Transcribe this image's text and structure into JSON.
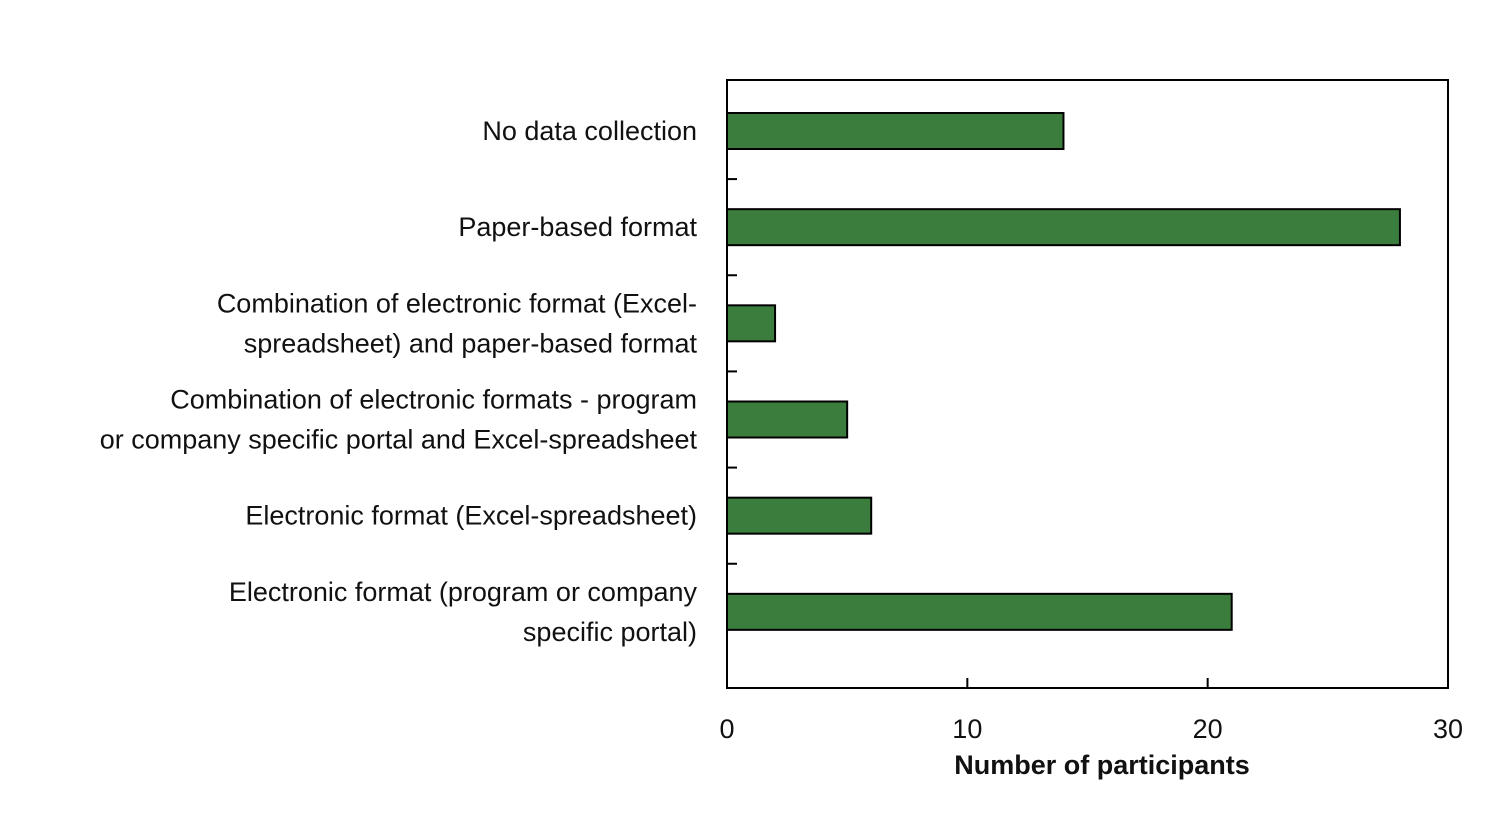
{
  "chart_data": {
    "type": "bar",
    "orientation": "horizontal",
    "categories": [
      [
        "No data collection"
      ],
      [
        "Paper-based format"
      ],
      [
        "Combination of electronic format (Excel-",
        "spreadsheet) and paper-based format"
      ],
      [
        "Combination of electronic formats -  program",
        "or company specific portal and Excel-spreadsheet"
      ],
      [
        "Electronic format (Excel-spreadsheet)"
      ],
      [
        "Electronic format (program or company",
        "specific portal)"
      ]
    ],
    "values": [
      14,
      28,
      2,
      5,
      6,
      21
    ],
    "xlabel": "Number of participants",
    "ylabel": "",
    "xlim": [
      0,
      30
    ],
    "xticks": [
      0,
      10,
      20,
      30
    ],
    "grid": false,
    "legend": "none",
    "bar_color": "#3b7d3c",
    "bar_edge_color": "#000000"
  }
}
